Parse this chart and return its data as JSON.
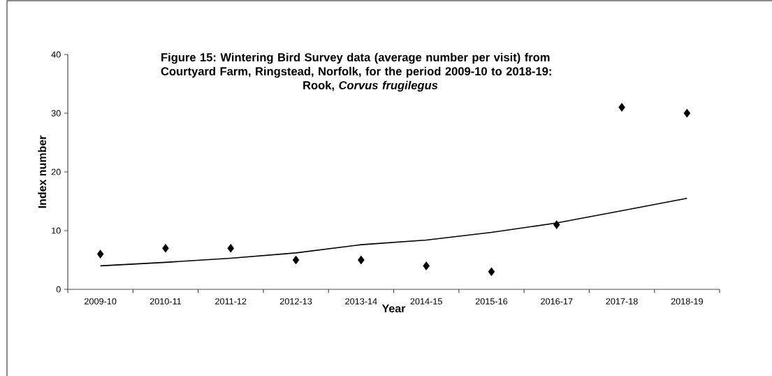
{
  "chart_data": {
    "type": "scatter",
    "title": "Figure 15: Wintering Bird Survey data (average number per visit) from Courtyard Farm, Ringstead, Norfolk, for the period 2009-10 to 2018-19: Rook, *Corvus frugilegus*",
    "xlabel": "Year",
    "ylabel": "Index number",
    "categories": [
      "2009-10",
      "2010-11",
      "2011-12",
      "2012-13",
      "2013-14",
      "2014-15",
      "2015-16",
      "2016-17",
      "2017-18",
      "2018-19"
    ],
    "series": [
      {
        "type": "scatter",
        "color": "#000000",
        "marker": "diamond",
        "values": [
          6,
          7,
          7,
          5,
          5,
          4,
          3,
          11,
          31,
          30
        ]
      },
      {
        "type": "line",
        "color": "#000000",
        "line_style": "solid",
        "values": [
          4.0,
          4.6,
          5.3,
          6.2,
          7.6,
          8.4,
          9.7,
          11.3,
          13.4,
          15.5
        ]
      }
    ],
    "ylim": [
      0,
      40
    ],
    "yticks": [
      0,
      10,
      20,
      30,
      40
    ],
    "grid": false,
    "legend": false
  }
}
